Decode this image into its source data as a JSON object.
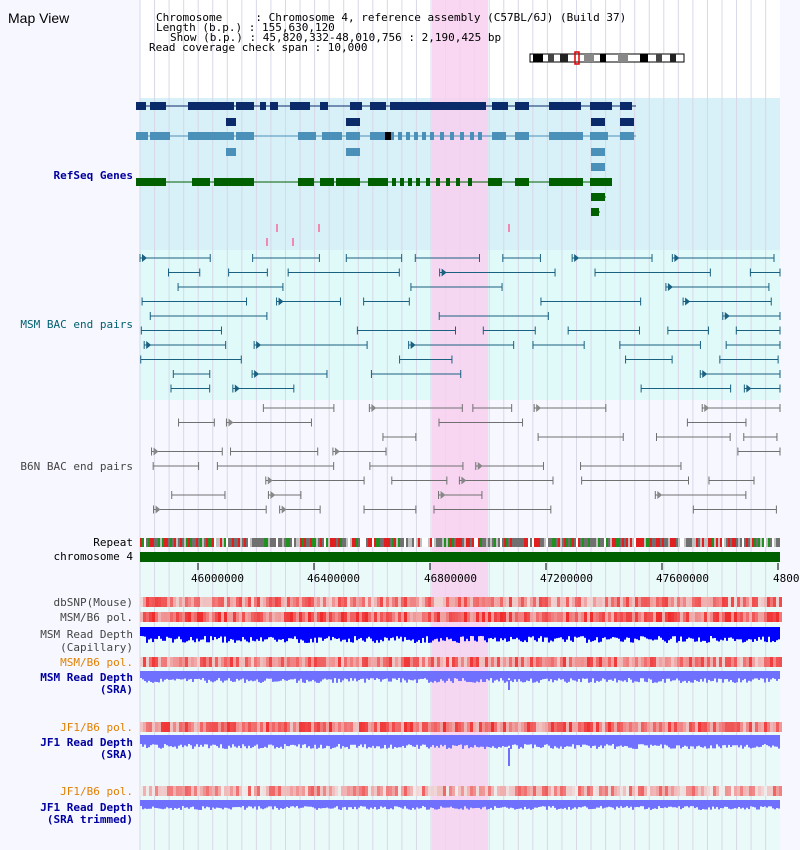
{
  "page": {
    "title": "Map View"
  },
  "header": {
    "chrom_label": "Chromosome     : Chromosome 4, reference assembly (C57BL/6J) (Build 37)",
    "length_label": "Length (b.p.) : 155,630,120",
    "show_label": "Show (b.p.) : 45,820,332-48,010,756 : 2,190,425 bp",
    "span_label": "Read coverage check span : 10,000"
  },
  "tracks": {
    "refseq": "RefSeq Genes",
    "msm_bac": "MSM BAC end pairs",
    "b6n_bac": "B6N BAC end pairs",
    "repeat": "Repeat",
    "chromosome": "chromosome 4",
    "dbsnp": "dbSNP(Mouse)",
    "msm_b6_pol_1": "MSM/B6 pol.",
    "msm_depth_cap_1": "MSM Read Depth",
    "msm_depth_cap_2": "(Capillary)",
    "msm_b6_pol_2": "MSM/B6 pol.",
    "msm_depth_sra_1": "MSM Read Depth",
    "msm_depth_sra_2": "(SRA)",
    "jf1_b6_pol_1": "JF1/B6 pol.",
    "jf1_depth_sra_1": "JF1 Read Depth",
    "jf1_depth_sra_2": "(SRA)",
    "jf1_b6_pol_2": "JF1/B6 pol.",
    "jf1_depth_trim_1": "JF1 Read Depth",
    "jf1_depth_trim_2": "(SRA trimmed)"
  },
  "axis": {
    "ticks": [
      "46000000",
      "46400000",
      "46800000",
      "47200000",
      "47600000",
      "4800"
    ]
  },
  "colors": {
    "highlight": "#f8d0f0",
    "refseq_bg": "#d8f0f8",
    "msm_bg": "#e0fafa",
    "gene_dark": "#0a2a6a",
    "gene_mid": "#4a90b8",
    "gene_green": "#006000",
    "msm_line": "#1a6080",
    "b6n_line": "#707070",
    "depth_blue": "#0000ff",
    "depth_light": "#7070ff"
  }
}
